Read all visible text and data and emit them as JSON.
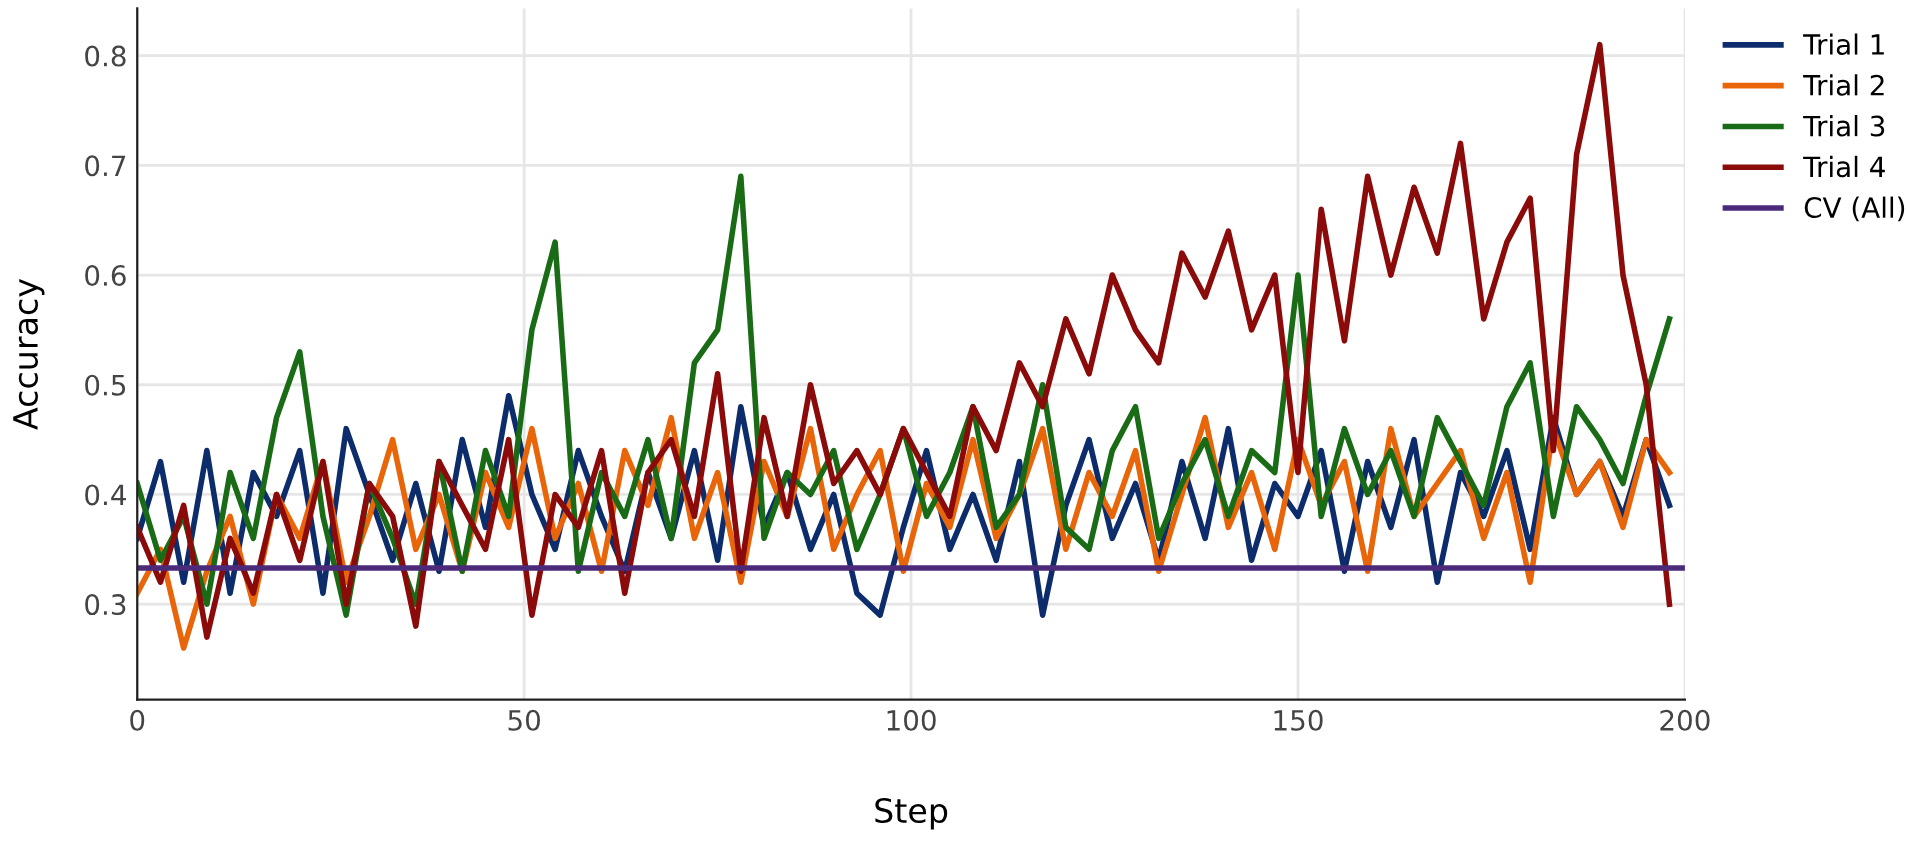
{
  "chart_data": {
    "type": "line",
    "xlabel": "Step",
    "ylabel": "Accuracy",
    "x": [
      0,
      3,
      6,
      9,
      12,
      15,
      18,
      21,
      24,
      27,
      30,
      33,
      36,
      39,
      42,
      45,
      48,
      51,
      54,
      57,
      60,
      63,
      66,
      69,
      72,
      75,
      78,
      81,
      84,
      87,
      90,
      93,
      96,
      99,
      102,
      105,
      108,
      111,
      114,
      117,
      120,
      123,
      126,
      129,
      132,
      135,
      138,
      141,
      144,
      147,
      150,
      153,
      156,
      159,
      162,
      165,
      168,
      171,
      174,
      177,
      180,
      183,
      186,
      189,
      192,
      195,
      198
    ],
    "series": [
      {
        "name": "Trial 1",
        "color": "#0d2c6c",
        "values": [
          0.36,
          0.43,
          0.32,
          0.44,
          0.31,
          0.42,
          0.38,
          0.44,
          0.31,
          0.46,
          0.4,
          0.34,
          0.41,
          0.33,
          0.45,
          0.37,
          0.49,
          0.4,
          0.35,
          0.44,
          0.38,
          0.33,
          0.42,
          0.36,
          0.44,
          0.34,
          0.48,
          0.37,
          0.42,
          0.35,
          0.4,
          0.31,
          0.29,
          0.37,
          0.44,
          0.35,
          0.4,
          0.34,
          0.43,
          0.29,
          0.39,
          0.45,
          0.36,
          0.41,
          0.34,
          0.43,
          0.36,
          0.46,
          0.34,
          0.41,
          0.38,
          0.44,
          0.33,
          0.43,
          0.37,
          0.45,
          0.32,
          0.42,
          0.38,
          0.44,
          0.35,
          0.47,
          0.4,
          0.43,
          0.38,
          0.45,
          0.39
        ]
      },
      {
        "name": "Trial 2",
        "color": "#e8650a",
        "values": [
          0.31,
          0.35,
          0.26,
          0.33,
          0.38,
          0.3,
          0.4,
          0.36,
          0.43,
          0.32,
          0.38,
          0.45,
          0.35,
          0.4,
          0.33,
          0.42,
          0.37,
          0.46,
          0.36,
          0.41,
          0.33,
          0.44,
          0.39,
          0.47,
          0.36,
          0.42,
          0.32,
          0.43,
          0.38,
          0.46,
          0.35,
          0.4,
          0.44,
          0.33,
          0.41,
          0.37,
          0.45,
          0.36,
          0.4,
          0.46,
          0.35,
          0.42,
          0.38,
          0.44,
          0.33,
          0.4,
          0.47,
          0.37,
          0.42,
          0.35,
          0.45,
          0.39,
          0.43,
          0.33,
          0.46,
          0.38,
          0.41,
          0.44,
          0.36,
          0.42,
          0.32,
          0.46,
          0.4,
          0.43,
          0.37,
          0.45,
          0.42
        ]
      },
      {
        "name": "Trial 3",
        "color": "#1a6b16",
        "values": [
          0.41,
          0.34,
          0.38,
          0.3,
          0.42,
          0.36,
          0.47,
          0.53,
          0.38,
          0.29,
          0.41,
          0.36,
          0.3,
          0.43,
          0.33,
          0.44,
          0.38,
          0.55,
          0.63,
          0.33,
          0.42,
          0.38,
          0.45,
          0.36,
          0.52,
          0.55,
          0.69,
          0.36,
          0.42,
          0.4,
          0.44,
          0.35,
          0.4,
          0.46,
          0.38,
          0.42,
          0.48,
          0.37,
          0.4,
          0.5,
          0.37,
          0.35,
          0.44,
          0.48,
          0.36,
          0.41,
          0.45,
          0.38,
          0.44,
          0.42,
          0.6,
          0.38,
          0.46,
          0.4,
          0.44,
          0.38,
          0.47,
          0.43,
          0.39,
          0.48,
          0.52,
          0.38,
          0.48,
          0.45,
          0.41,
          0.49,
          0.56
        ]
      },
      {
        "name": "Trial 4",
        "color": "#8b0a0a",
        "values": [
          0.37,
          0.32,
          0.39,
          0.27,
          0.36,
          0.31,
          0.4,
          0.34,
          0.43,
          0.3,
          0.41,
          0.38,
          0.28,
          0.43,
          0.39,
          0.35,
          0.45,
          0.29,
          0.4,
          0.37,
          0.44,
          0.31,
          0.42,
          0.45,
          0.38,
          0.51,
          0.33,
          0.47,
          0.38,
          0.5,
          0.41,
          0.44,
          0.4,
          0.46,
          0.42,
          0.38,
          0.48,
          0.44,
          0.52,
          0.48,
          0.56,
          0.51,
          0.6,
          0.55,
          0.52,
          0.62,
          0.58,
          0.64,
          0.55,
          0.6,
          0.42,
          0.66,
          0.54,
          0.69,
          0.6,
          0.68,
          0.62,
          0.72,
          0.56,
          0.63,
          0.67,
          0.44,
          0.71,
          0.81,
          0.6,
          0.5,
          0.3
        ]
      },
      {
        "name": "CV (All)",
        "color": "#4b2a7a",
        "x": [
          0,
          200
        ],
        "values": [
          0.333,
          0.333
        ]
      }
    ],
    "xlim": [
      0,
      200
    ],
    "ylim": [
      0.213,
      0.843
    ],
    "xticks": [
      0,
      50,
      100,
      150,
      200
    ],
    "yticks": [
      0.3,
      0.4,
      0.5,
      0.6,
      0.7,
      0.8
    ],
    "grid": true,
    "legend": "top right",
    "line_style": "solid",
    "marker": "none"
  }
}
